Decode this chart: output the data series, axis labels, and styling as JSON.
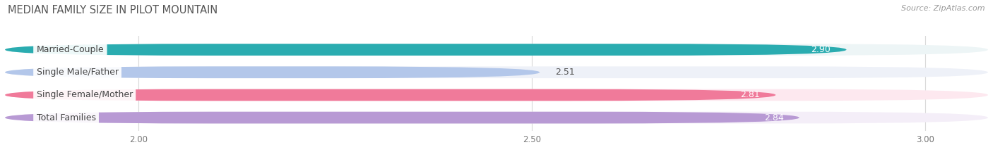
{
  "title": "MEDIAN FAMILY SIZE IN PILOT MOUNTAIN",
  "source": "Source: ZipAtlas.com",
  "categories": [
    "Married-Couple",
    "Single Male/Father",
    "Single Female/Mother",
    "Total Families"
  ],
  "values": [
    2.9,
    2.51,
    2.81,
    2.84
  ],
  "bar_colors": [
    "#2aacb0",
    "#b3c7ea",
    "#f07a9a",
    "#b89ad4"
  ],
  "bar_bg_colors": [
    "#edf5f6",
    "#eef1f8",
    "#fde8ef",
    "#f4eef8"
  ],
  "value_inside": [
    true,
    false,
    true,
    true
  ],
  "value_colors_inside": [
    "#ffffff",
    "#666666",
    "#ffffff",
    "#ffffff"
  ],
  "xlim_min": 1.83,
  "xlim_max": 3.08,
  "xticks": [
    2.0,
    2.5,
    3.0
  ],
  "bar_height": 0.52,
  "bar_gap": 0.18,
  "figsize": [
    14.06,
    2.33
  ],
  "dpi": 100,
  "title_fontsize": 10.5,
  "source_fontsize": 8,
  "label_fontsize": 9,
  "value_fontsize": 9,
  "tick_fontsize": 8.5,
  "background_color": "#ffffff"
}
